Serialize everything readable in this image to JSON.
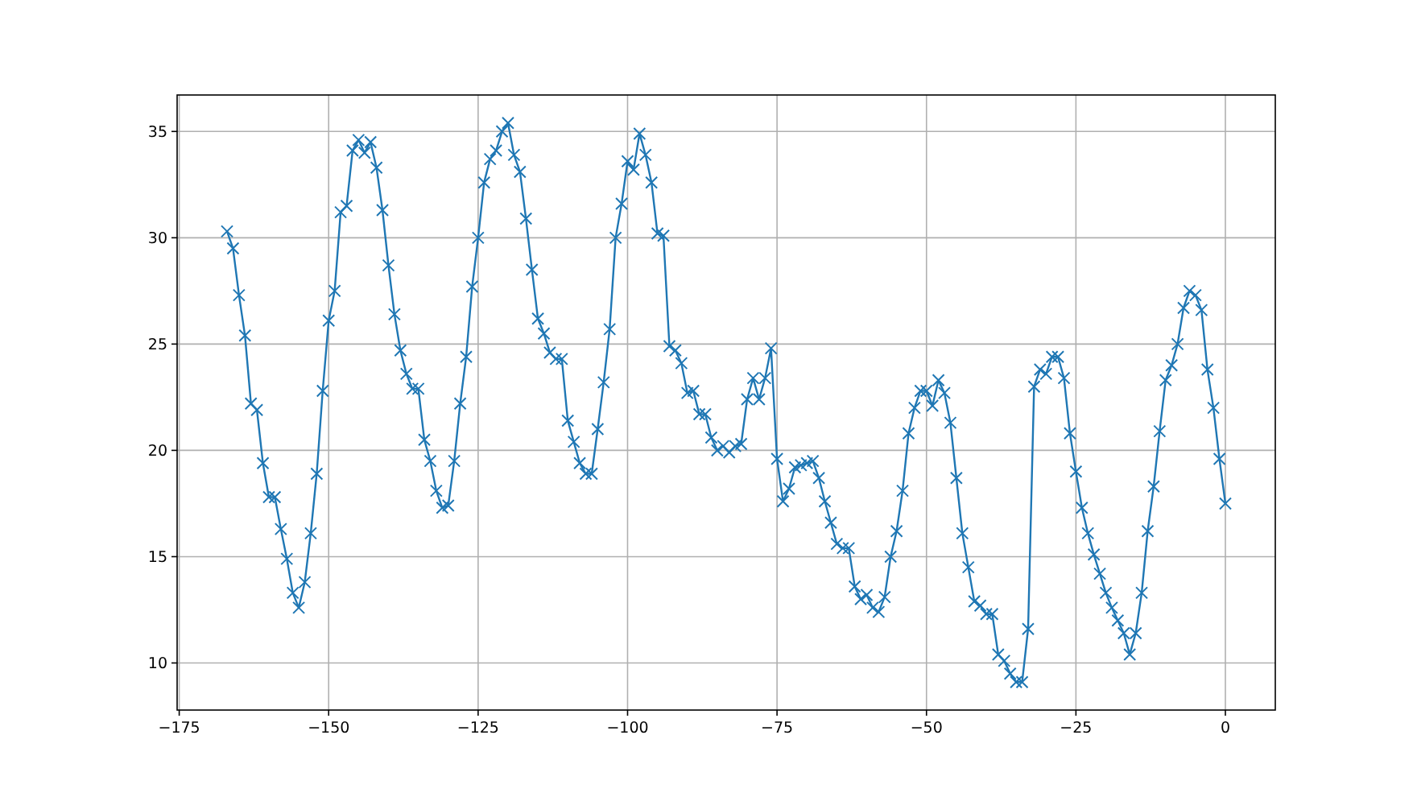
{
  "chart_data": {
    "type": "line",
    "marker": "cross",
    "grid": true,
    "xlim": [
      -175.35,
      8.35
    ],
    "ylim": [
      7.785,
      36.715
    ],
    "xticks": [
      {
        "value": -175,
        "label": "−175"
      },
      {
        "value": -150,
        "label": "−150"
      },
      {
        "value": -125,
        "label": "−125"
      },
      {
        "value": -100,
        "label": "−100"
      },
      {
        "value": -75,
        "label": "−75"
      },
      {
        "value": -50,
        "label": "−50"
      },
      {
        "value": -25,
        "label": "−25"
      },
      {
        "value": 0,
        "label": "0"
      }
    ],
    "yticks": [
      10,
      15,
      20,
      25,
      30,
      35
    ],
    "x": [
      -167,
      -166,
      -165,
      -164,
      -163,
      -162,
      -161,
      -160,
      -159,
      -158,
      -157,
      -156,
      -155,
      -154,
      -153,
      -152,
      -151,
      -150,
      -149,
      -148,
      -147,
      -146,
      -145,
      -144,
      -143,
      -142,
      -141,
      -140,
      -139,
      -138,
      -137,
      -136,
      -135,
      -134,
      -133,
      -132,
      -131,
      -130,
      -129,
      -128,
      -127,
      -126,
      -125,
      -124,
      -123,
      -122,
      -121,
      -120,
      -119,
      -118,
      -117,
      -116,
      -115,
      -114,
      -113,
      -112,
      -111,
      -110,
      -109,
      -108,
      -107,
      -106,
      -105,
      -104,
      -103,
      -102,
      -101,
      -100,
      -99,
      -98,
      -97,
      -96,
      -95,
      -94,
      -93,
      -92,
      -91,
      -90,
      -89,
      -88,
      -87,
      -86,
      -85,
      -84,
      -83,
      -82,
      -81,
      -80,
      -79,
      -78,
      -77,
      -76,
      -75,
      -74,
      -73,
      -72,
      -71,
      -70,
      -69,
      -68,
      -67,
      -66,
      -65,
      -64,
      -63,
      -62,
      -61,
      -60,
      -59,
      -58,
      -57,
      -56,
      -55,
      -54,
      -53,
      -52,
      -51,
      -50,
      -49,
      -48,
      -47,
      -46,
      -45,
      -44,
      -43,
      -42,
      -41,
      -40,
      -39,
      -38,
      -37,
      -36,
      -35,
      -34,
      -33,
      -32,
      -31,
      -30,
      -29,
      -28,
      -27,
      -26,
      -25,
      -24,
      -23,
      -22,
      -21,
      -20,
      -19,
      -18,
      -17,
      -16,
      -15,
      -14,
      -13,
      -12,
      -11,
      -10,
      -9,
      -8,
      -7,
      -6,
      -5,
      -4,
      -3,
      -2,
      -1,
      0
    ],
    "series": [
      {
        "color": "#1f77b4",
        "values": [
          30.3,
          29.5,
          27.3,
          25.4,
          22.2,
          21.9,
          19.4,
          17.8,
          17.8,
          16.3,
          14.9,
          13.3,
          12.6,
          13.8,
          16.1,
          18.9,
          22.8,
          26.1,
          27.5,
          31.2,
          31.5,
          34.1,
          34.6,
          34.0,
          34.5,
          33.3,
          31.3,
          28.7,
          26.4,
          24.7,
          23.6,
          22.9,
          22.9,
          20.5,
          19.5,
          18.1,
          17.3,
          17.4,
          19.5,
          22.2,
          24.4,
          27.7,
          30.0,
          32.6,
          33.7,
          34.1,
          35.0,
          35.4,
          33.9,
          33.1,
          30.9,
          28.5,
          26.2,
          25.5,
          24.6,
          24.3,
          24.3,
          21.4,
          20.4,
          19.4,
          18.9,
          18.9,
          21.0,
          23.2,
          25.7,
          30.0,
          31.6,
          33.6,
          33.2,
          34.9,
          33.9,
          32.6,
          30.2,
          30.1,
          24.9,
          24.7,
          24.1,
          22.7,
          22.8,
          21.7,
          21.7,
          20.6,
          20.0,
          20.2,
          19.9,
          20.2,
          20.3,
          22.4,
          23.4,
          22.4,
          23.4,
          24.8,
          19.6,
          17.6,
          18.2,
          19.2,
          19.3,
          19.4,
          19.5,
          18.7,
          17.6,
          16.6,
          15.6,
          15.4,
          15.4,
          13.6,
          13.0,
          13.2,
          12.6,
          12.4,
          13.1,
          15.0,
          16.2,
          18.1,
          20.8,
          22.0,
          22.8,
          22.8,
          22.1,
          23.3,
          22.7,
          21.3,
          18.7,
          16.1,
          14.5,
          12.9,
          12.7,
          12.3,
          12.3,
          10.4,
          10.1,
          9.5,
          9.1,
          9.1,
          11.6,
          23.0,
          23.8,
          23.6,
          24.4,
          24.4,
          23.4,
          20.8,
          19.0,
          17.3,
          16.1,
          15.1,
          14.2,
          13.3,
          12.6,
          12.0,
          11.4,
          10.4,
          11.4,
          13.3,
          16.2,
          18.3,
          20.9,
          23.3,
          24.0,
          25.0,
          26.7,
          27.5,
          27.3,
          26.6,
          23.8,
          22.0,
          19.6,
          17.5
        ]
      }
    ]
  }
}
